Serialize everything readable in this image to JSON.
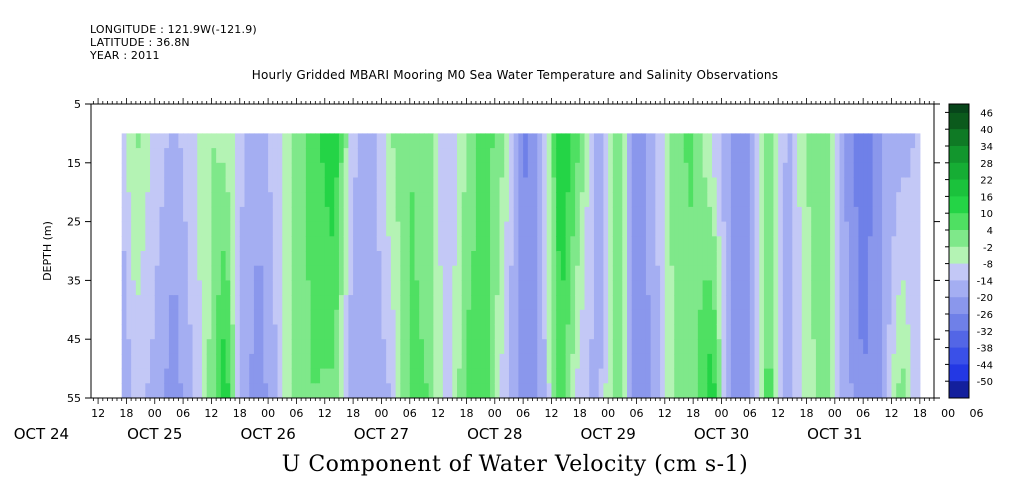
{
  "header": {
    "longitude": "LONGITUDE : 121.9W(-121.9)",
    "latitude": "LATITUDE : 36.8N",
    "year": "YEAR : 2011"
  },
  "chart_data": {
    "type": "heatmap",
    "title": "Hourly Gridded MBARI Mooring M0 Sea Water Temperature and Salinity Observations",
    "subtitle": "U Component of Water Velocity (cm s-1)",
    "ylabel": "DEPTH (m)",
    "y_axis": {
      "range": [
        5,
        55
      ],
      "ticks": [
        5,
        15,
        25,
        35,
        45,
        55
      ],
      "inverted": true
    },
    "x_axis": {
      "hour_ticks": [
        "12",
        "18",
        "00",
        "06",
        "12",
        "18",
        "00",
        "06",
        "12",
        "18",
        "00",
        "06",
        "12",
        "18",
        "00",
        "06",
        "12",
        "18",
        "00",
        "06",
        "12",
        "18",
        "00",
        "06",
        "12",
        "18",
        "00",
        "06",
        "12",
        "18",
        "00",
        "06"
      ],
      "day_labels": [
        "OCT 24",
        "OCT 25",
        "OCT 26",
        "OCT 27",
        "OCT 28",
        "OCT 29",
        "OCT 30",
        "OCT 31"
      ]
    },
    "data_depth_range_m": [
      10,
      55
    ],
    "data_time_range_hours_from_oct24_00": [
      17,
      186
    ],
    "colorbar": {
      "tick_labels": [
        "46",
        "40",
        "34",
        "28",
        "22",
        "16",
        "10",
        "4",
        "-2",
        "-8",
        "-14",
        "-20",
        "-26",
        "-32",
        "-38",
        "-44",
        "-50"
      ],
      "range": [
        -50,
        52
      ]
    },
    "colors": {
      "strong_negative": "#1f3ef0",
      "moderate_negative": "#6f82ea",
      "weak_negative": "#aab4f2",
      "weak_positive": "#a6f0a6",
      "moderate_positive": "#5fe46f",
      "strong_positive": "#1fd83a"
    },
    "series": [
      {
        "hour": 17,
        "surface": -6,
        "bottom": -14
      },
      {
        "hour": 20,
        "surface": 6,
        "bottom": -6
      },
      {
        "hour": 24,
        "surface": -4,
        "bottom": -10
      },
      {
        "hour": 28,
        "surface": -10,
        "bottom": -18
      },
      {
        "hour": 32,
        "surface": -4,
        "bottom": -8
      },
      {
        "hour": 36,
        "surface": 4,
        "bottom": 6
      },
      {
        "hour": 39,
        "surface": 2,
        "bottom": 22
      },
      {
        "hour": 42,
        "surface": -6,
        "bottom": -10
      },
      {
        "hour": 46,
        "surface": -12,
        "bottom": -18
      },
      {
        "hour": 50,
        "surface": -4,
        "bottom": -8
      },
      {
        "hour": 54,
        "surface": 6,
        "bottom": 8
      },
      {
        "hour": 58,
        "surface": 14,
        "bottom": 10
      },
      {
        "hour": 62,
        "surface": 22,
        "bottom": 8
      },
      {
        "hour": 66,
        "surface": -6,
        "bottom": -14
      },
      {
        "hour": 70,
        "surface": -12,
        "bottom": -12
      },
      {
        "hour": 74,
        "surface": 4,
        "bottom": -8
      },
      {
        "hour": 78,
        "surface": 10,
        "bottom": 12
      },
      {
        "hour": 82,
        "surface": 6,
        "bottom": 10
      },
      {
        "hour": 86,
        "surface": -8,
        "bottom": -8
      },
      {
        "hour": 90,
        "surface": 4,
        "bottom": 12
      },
      {
        "hour": 94,
        "surface": 14,
        "bottom": 14
      },
      {
        "hour": 98,
        "surface": 4,
        "bottom": -6
      },
      {
        "hour": 102,
        "surface": -22,
        "bottom": -18
      },
      {
        "hour": 106,
        "surface": -10,
        "bottom": -12
      },
      {
        "hour": 110,
        "surface": 24,
        "bottom": 14
      },
      {
        "hour": 114,
        "surface": 10,
        "bottom": -6
      },
      {
        "hour": 118,
        "surface": -16,
        "bottom": -10
      },
      {
        "hour": 122,
        "surface": 10,
        "bottom": 12
      },
      {
        "hour": 126,
        "surface": -20,
        "bottom": -20
      },
      {
        "hour": 130,
        "surface": -8,
        "bottom": -12
      },
      {
        "hour": 134,
        "surface": 8,
        "bottom": 4
      },
      {
        "hour": 138,
        "surface": 12,
        "bottom": 6
      },
      {
        "hour": 142,
        "surface": -4,
        "bottom": 22
      },
      {
        "hour": 146,
        "surface": -14,
        "bottom": -18
      },
      {
        "hour": 150,
        "surface": -16,
        "bottom": -14
      },
      {
        "hour": 154,
        "surface": 8,
        "bottom": 14
      },
      {
        "hour": 158,
        "surface": -10,
        "bottom": -14
      },
      {
        "hour": 162,
        "surface": 4,
        "bottom": 2
      },
      {
        "hour": 166,
        "surface": 8,
        "bottom": 6
      },
      {
        "hour": 170,
        "surface": -14,
        "bottom": -10
      },
      {
        "hour": 174,
        "surface": -26,
        "bottom": -20
      },
      {
        "hour": 178,
        "surface": -14,
        "bottom": -14
      },
      {
        "hour": 182,
        "surface": -12,
        "bottom": 8
      },
      {
        "hour": 186,
        "surface": -6,
        "bottom": -10
      }
    ]
  }
}
